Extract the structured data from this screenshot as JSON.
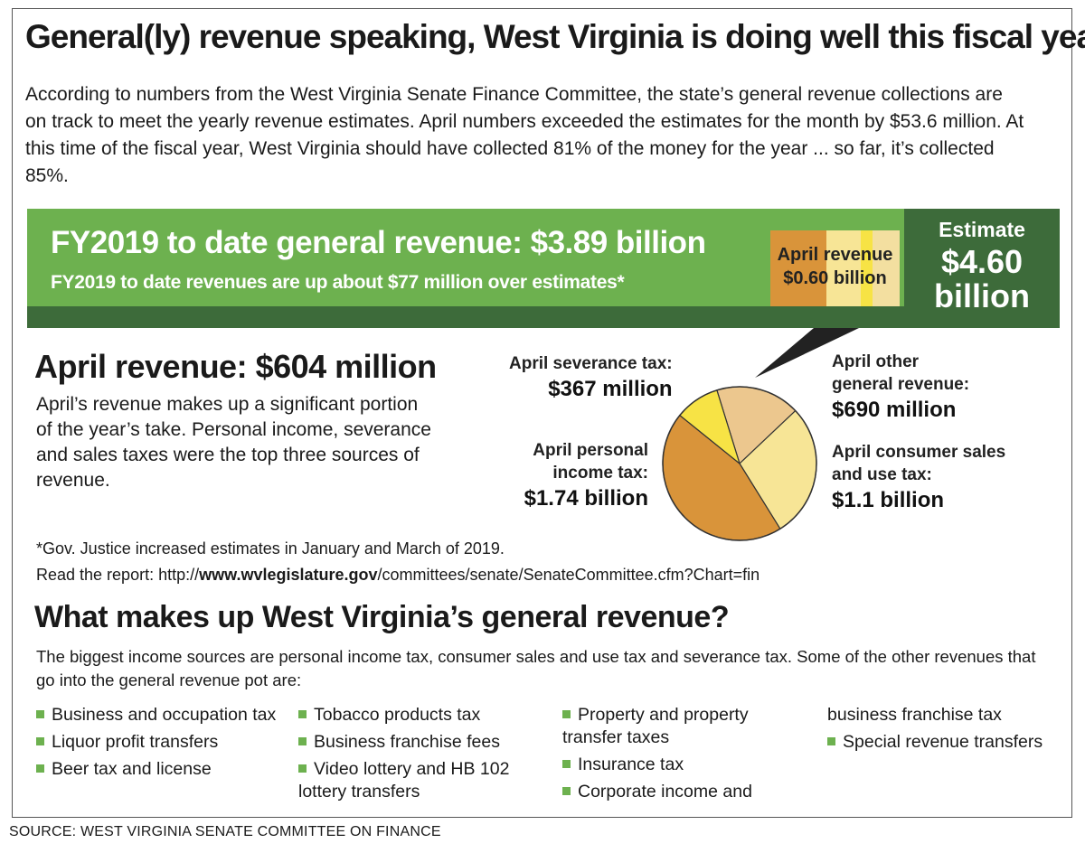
{
  "title": "General(ly) revenue speaking, West Virginia is doing well this fiscal year",
  "intro": "According to numbers from the West Virginia Senate Finance Committee, the state’s general revenue collections are on track to meet the yearly revenue estimates. April numbers exceeded the estimates for the month by $53.6 million.  At this time of the fiscal year, West Virginia should have collected 81% of the money for the year ... so far, it’s collected 85%.",
  "banner": {
    "line1": "FY2019 to date general revenue: $3.89 billion",
    "line2": "FY2019 to date revenues are up  about $77 million over estimates*",
    "april_label": "April revenue",
    "april_value": "$0.60 billion",
    "estimate_label": "Estimate",
    "estimate_value_1": "$4.60",
    "estimate_value_2": "billion"
  },
  "april": {
    "heading": "April revenue: $604 million",
    "paragraph": "April’s revenue makes up a significant portion of the year’s take.  Personal income, severance and sales taxes were the top three sources of revenue."
  },
  "labels": {
    "severance_name": "April severance tax:",
    "severance_value": "$367 million",
    "personal_name_1": "April personal",
    "personal_name_2": "income tax:",
    "personal_value": "$1.74 billion",
    "other_name_1": "April other",
    "other_name_2": "general revenue:",
    "other_value": "$690 million",
    "sales_name_1": "April consumer sales",
    "sales_name_2": "and use tax:",
    "sales_value": "$1.1 billion"
  },
  "chart_data": [
    {
      "type": "bar",
      "orientation": "horizontal-stacked",
      "categories": [
        "FY2019 to date general revenue",
        "April revenue",
        "Estimate"
      ],
      "values": [
        3.89,
        0.6,
        4.6
      ],
      "units": "billion dollars"
    },
    {
      "type": "pie",
      "categories": [
        "April personal income tax",
        "April consumer sales and use tax",
        "April other general revenue",
        "April severance tax"
      ],
      "values": [
        1.74,
        1.1,
        0.69,
        0.367
      ],
      "units": "billion dollars",
      "colors": [
        "#d9943a",
        "#f7e596",
        "#ecc78e",
        "#f7e345"
      ]
    }
  ],
  "footnote": "*Gov. Justice increased estimates in January and March of 2019.",
  "report": {
    "prefix": "Read the report: http://",
    "domain": "www.wvlegislature.gov",
    "path": "/committees/senate/SenateCommittee.cfm?Chart=fin"
  },
  "sources": {
    "heading": "What makes up West Virginia’s general revenue?",
    "paragraph": "The biggest income sources are personal income tax, consumer sales and use tax and severance tax.  Some of the other revenues that go into the general revenue pot are:",
    "col1": [
      "Business and occupation tax",
      "Liquor profit transfers",
      "Beer tax and license"
    ],
    "col2": [
      "Tobacco products tax",
      "Business franchise fees",
      "Video lottery and HB 102 lottery transfers"
    ],
    "col3": [
      "Property and property transfer taxes",
      "Insurance tax",
      "Corporate income and"
    ],
    "col4_cont": "business franchise tax",
    "col4": [
      "Special revenue transfers"
    ]
  },
  "source_line": "SOURCE:  WEST VIRGINIA SENATE COMMITTEE ON FINANCE"
}
